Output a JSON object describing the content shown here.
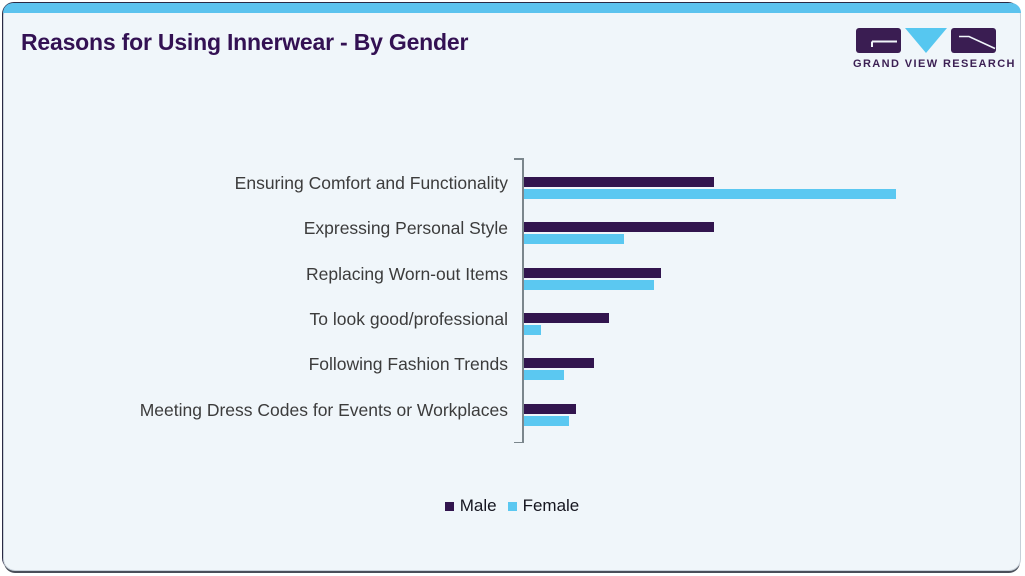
{
  "page": {
    "title": "Reasons for Using Innerwear - By Gender"
  },
  "logo": {
    "text": "GRAND VIEW RESEARCH"
  },
  "colors": {
    "male": "#32154e",
    "female": "#5bc8f1",
    "card_background": "#f0f6fa",
    "top_strip": "#5cc3ee",
    "title_text": "#331153",
    "axis": "#7b868c",
    "category_text": "#3c3c3c"
  },
  "chart_data": {
    "type": "bar",
    "orientation": "horizontal",
    "title": "Reasons for Using Innerwear - By Gender",
    "xlabel": "",
    "ylabel": "",
    "xlim": [
      0,
      100
    ],
    "grid": false,
    "axis_value_labels_visible": false,
    "legend_position": "bottom",
    "categories": [
      "Ensuring Comfort and Functionality",
      "Expressing Personal Style",
      "Replacing Worn-out Items",
      "To look good/professional",
      "Following Fashion Trends",
      "Meeting Dress Codes for Events or Workplaces"
    ],
    "series": [
      {
        "name": "Male",
        "color": "#32154e",
        "values": [
          38,
          38,
          27.5,
          17,
          14,
          10.5
        ]
      },
      {
        "name": "Female",
        "color": "#5bc8f1",
        "values": [
          74.5,
          20,
          26,
          3.5,
          8,
          9
        ]
      }
    ]
  }
}
